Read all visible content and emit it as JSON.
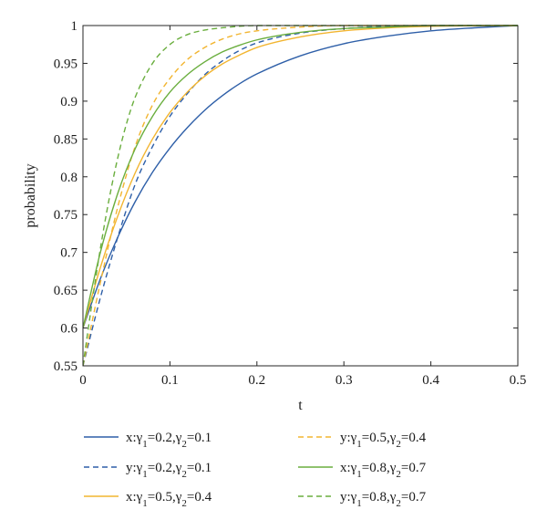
{
  "chart_data": {
    "type": "line",
    "xlabel": "t",
    "ylabel": "probability",
    "xlim": [
      0,
      0.5
    ],
    "ylim": [
      0.55,
      1
    ],
    "x_ticks": [
      0,
      0.1,
      0.2,
      0.3,
      0.4,
      0.5
    ],
    "x_tick_labels": [
      "0",
      "0.1",
      "0.2",
      "0.3",
      "0.4",
      "0.5"
    ],
    "y_ticks": [
      0.55,
      0.6,
      0.65,
      0.7,
      0.75,
      0.8,
      0.85,
      0.9,
      0.95,
      1
    ],
    "y_tick_labels": [
      "0.55",
      "0.6",
      "0.65",
      "0.7",
      "0.75",
      "0.8",
      "0.85",
      "0.9",
      "0.95",
      "1"
    ],
    "grid": false,
    "legend_position": "bottom",
    "series": [
      {
        "label": "x:γ1=0.2,γ2=0.1",
        "var": "x",
        "g1": "0.2",
        "g2": "0.1",
        "color": "#2E5FA8",
        "dash": "solid",
        "x": [
          0,
          0.02,
          0.04,
          0.06,
          0.08,
          0.1,
          0.12,
          0.14,
          0.16,
          0.18,
          0.2,
          0.25,
          0.3,
          0.35,
          0.4,
          0.45,
          0.5
        ],
        "y": [
          0.6,
          0.665,
          0.72,
          0.767,
          0.806,
          0.838,
          0.865,
          0.888,
          0.907,
          0.923,
          0.936,
          0.96,
          0.976,
          0.986,
          0.993,
          0.997,
          1.0
        ]
      },
      {
        "label": "y:γ1=0.2,γ2=0.1",
        "var": "y",
        "g1": "0.2",
        "g2": "0.1",
        "color": "#2E5FA8",
        "dash": "dashed",
        "x": [
          0,
          0.02,
          0.04,
          0.06,
          0.08,
          0.1,
          0.12,
          0.14,
          0.16,
          0.18,
          0.2,
          0.25,
          0.3,
          0.35,
          0.4,
          0.5
        ],
        "y": [
          0.55,
          0.64,
          0.72,
          0.79,
          0.84,
          0.88,
          0.91,
          0.935,
          0.953,
          0.967,
          0.977,
          0.99,
          0.996,
          0.999,
          1.0,
          1.0
        ]
      },
      {
        "label": "x:γ1=0.5,γ2=0.4",
        "var": "x",
        "g1": "0.5",
        "g2": "0.4",
        "color": "#F2B530",
        "dash": "solid",
        "x": [
          0,
          0.02,
          0.04,
          0.06,
          0.08,
          0.1,
          0.12,
          0.14,
          0.16,
          0.18,
          0.2,
          0.25,
          0.3,
          0.35,
          0.4,
          0.5
        ],
        "y": [
          0.6,
          0.68,
          0.748,
          0.805,
          0.85,
          0.885,
          0.912,
          0.933,
          0.949,
          0.961,
          0.971,
          0.985,
          0.993,
          0.997,
          0.999,
          1.0
        ]
      },
      {
        "label": "y:γ1=0.5,γ2=0.4",
        "var": "y",
        "g1": "0.5",
        "g2": "0.4",
        "color": "#F2B530",
        "dash": "dashed",
        "x": [
          0,
          0.02,
          0.04,
          0.06,
          0.08,
          0.1,
          0.12,
          0.14,
          0.16,
          0.18,
          0.2,
          0.25,
          0.3,
          0.4,
          0.5
        ],
        "y": [
          0.55,
          0.66,
          0.76,
          0.84,
          0.895,
          0.93,
          0.955,
          0.971,
          0.982,
          0.989,
          0.993,
          0.998,
          1.0,
          1.0,
          1.0
        ]
      },
      {
        "label": "x:γ1=0.8,γ2=0.7",
        "var": "x",
        "g1": "0.8",
        "g2": "0.7",
        "color": "#6AAE3E",
        "dash": "solid",
        "x": [
          0,
          0.02,
          0.04,
          0.06,
          0.08,
          0.1,
          0.12,
          0.14,
          0.16,
          0.18,
          0.2,
          0.25,
          0.3,
          0.35,
          0.4,
          0.5
        ],
        "y": [
          0.6,
          0.7,
          0.778,
          0.837,
          0.88,
          0.912,
          0.935,
          0.952,
          0.965,
          0.974,
          0.981,
          0.991,
          0.996,
          0.998,
          1.0,
          1.0
        ]
      },
      {
        "label": "y:γ1=0.8,γ2=0.7",
        "var": "y",
        "g1": "0.8",
        "g2": "0.7",
        "color": "#6AAE3E",
        "dash": "dashed",
        "x": [
          0,
          0.01,
          0.02,
          0.03,
          0.04,
          0.05,
          0.06,
          0.08,
          0.1,
          0.12,
          0.14,
          0.16,
          0.2,
          0.25,
          0.3,
          0.5
        ],
        "y": [
          0.55,
          0.63,
          0.705,
          0.77,
          0.825,
          0.87,
          0.905,
          0.95,
          0.975,
          0.988,
          0.994,
          0.997,
          1.0,
          1.0,
          1.0,
          1.0
        ]
      }
    ]
  }
}
